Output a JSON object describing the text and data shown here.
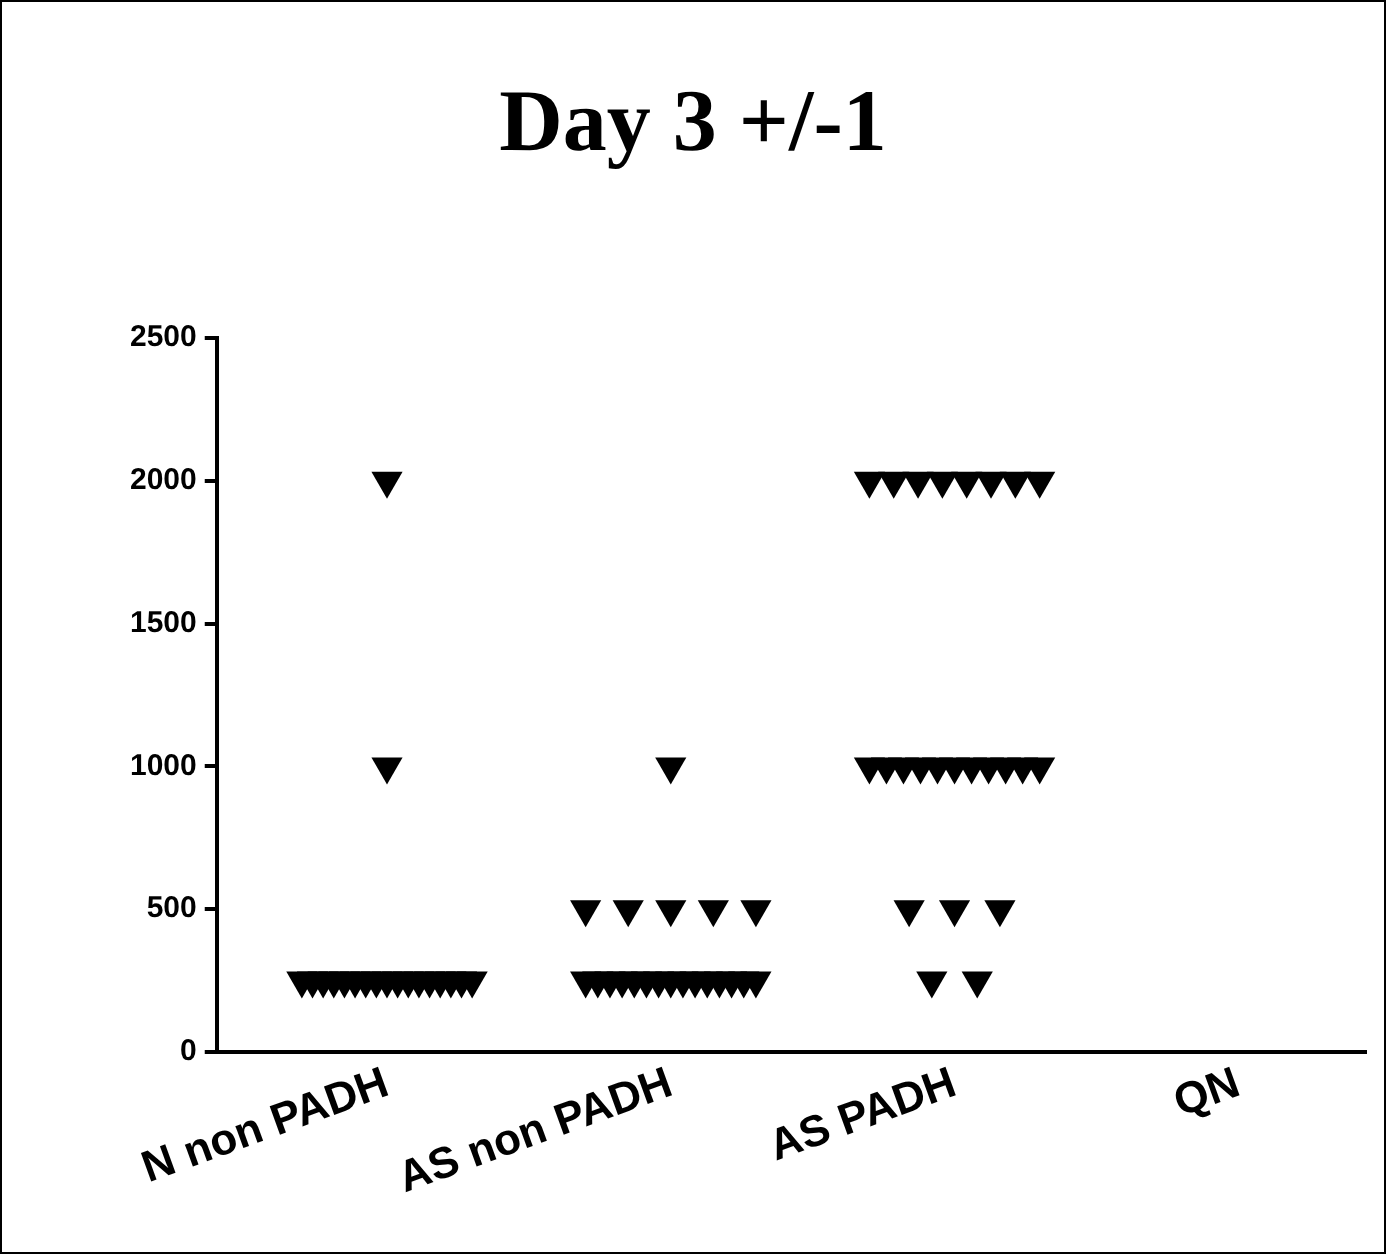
{
  "chart_data": {
    "type": "scatter",
    "title": "Day 3 +/-1",
    "categories": [
      "N non PADH",
      "AS non PADH",
      "AS PADH",
      "QN"
    ],
    "series": [
      {
        "color": "#000000",
        "x": [
          "N non PADH",
          "N non PADH",
          "N non PADH",
          "N non PADH",
          "N non PADH",
          "N non PADH",
          "N non PADH",
          "N non PADH",
          "N non PADH",
          "N non PADH",
          "N non PADH",
          "N non PADH",
          "N non PADH",
          "N non PADH",
          "N non PADH",
          "N non PADH",
          "N non PADH",
          "N non PADH",
          "N non PADH",
          "AS non PADH",
          "AS non PADH",
          "AS non PADH",
          "AS non PADH",
          "AS non PADH",
          "AS non PADH",
          "AS non PADH",
          "AS non PADH",
          "AS non PADH",
          "AS non PADH",
          "AS non PADH",
          "AS non PADH",
          "AS non PADH",
          "AS non PADH",
          "AS non PADH",
          "AS non PADH",
          "AS non PADH",
          "AS non PADH",
          "AS non PADH",
          "AS non PADH",
          "AS non PADH",
          "AS PADH",
          "AS PADH",
          "AS PADH",
          "AS PADH",
          "AS PADH",
          "AS PADH",
          "AS PADH",
          "AS PADH",
          "AS PADH",
          "AS PADH",
          "AS PADH",
          "AS PADH",
          "AS PADH",
          "AS PADH",
          "AS PADH",
          "AS PADH",
          "AS PADH",
          "AS PADH",
          "AS PADH",
          "AS PADH",
          "AS PADH",
          "AS PADH",
          "AS PADH",
          "AS PADH"
        ],
        "values": [
          2000,
          1000,
          250,
          250,
          250,
          250,
          250,
          250,
          250,
          250,
          250,
          250,
          250,
          250,
          250,
          250,
          250,
          250,
          250,
          1000,
          500,
          500,
          500,
          500,
          500,
          250,
          250,
          250,
          250,
          250,
          250,
          250,
          250,
          250,
          250,
          250,
          250,
          250,
          250,
          250,
          2000,
          2000,
          2000,
          2000,
          2000,
          2000,
          2000,
          2000,
          1000,
          1000,
          1000,
          1000,
          1000,
          1000,
          1000,
          1000,
          1000,
          1000,
          1000,
          500,
          500,
          500,
          250,
          250
        ]
      }
    ],
    "ylim": [
      0,
      2500
    ],
    "yticks": [
      0,
      500,
      1000,
      1500,
      2000,
      2500
    ],
    "grid": false,
    "legend": false,
    "marker": "triangle"
  }
}
